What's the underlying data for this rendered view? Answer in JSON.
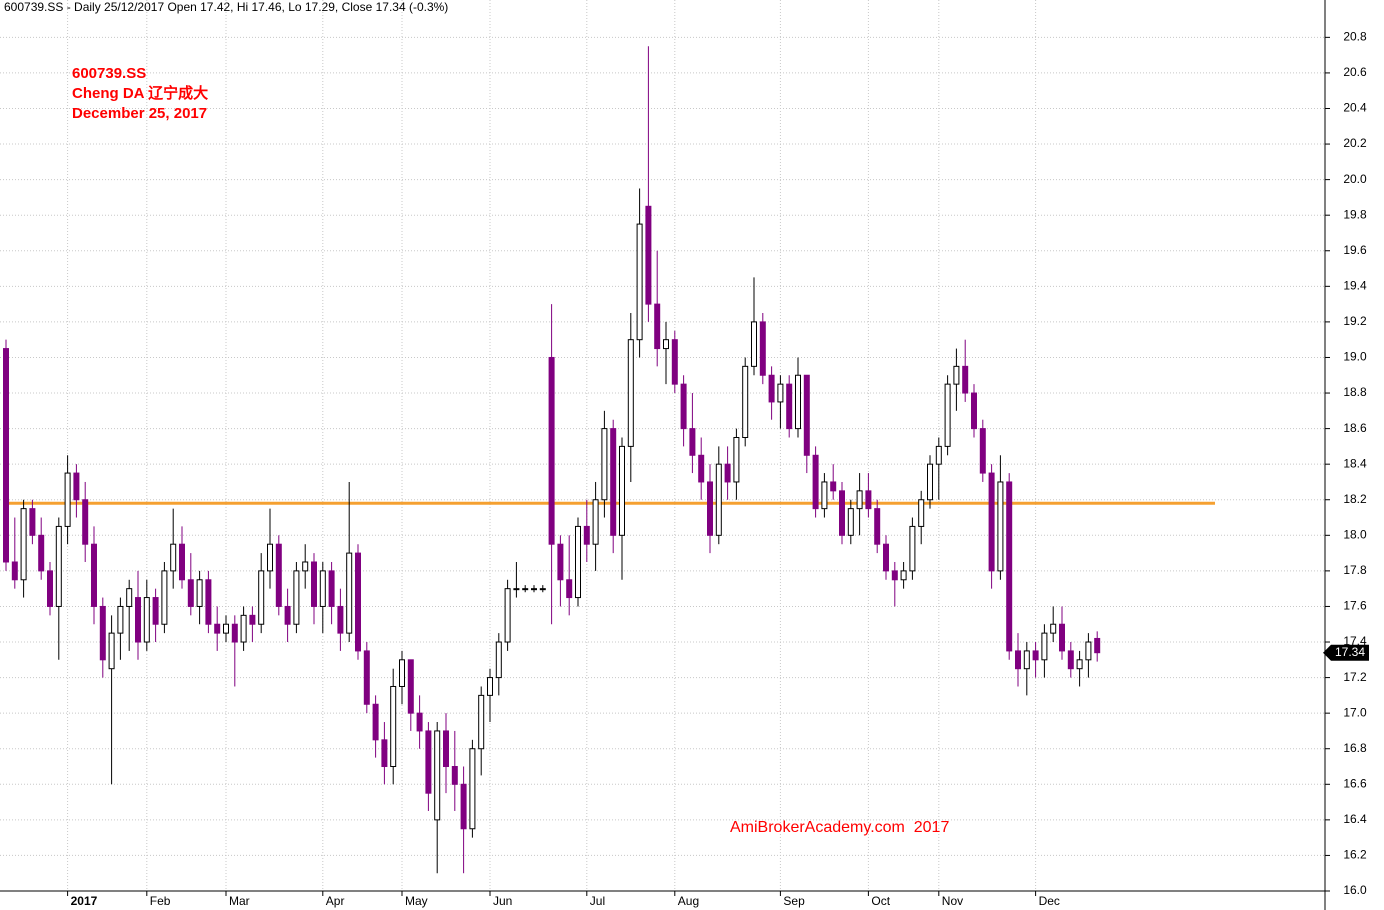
{
  "chart_data": {
    "type": "candlestick",
    "header": "600739.SS - Daily 25/12/2017 Open 17.42, Hi 17.46, Lo 17.29, Close 17.34 (-0.3%)",
    "annotations": [
      "600739.SS",
      "Cheng DA 辽宁成大",
      "December 25, 2017"
    ],
    "watermark": "AmiBrokerAcademy.com  2017",
    "up_color": "#ffffff",
    "down_color": "#800080",
    "annotation_color": "#ff0000",
    "reference_line": {
      "value": 18.18,
      "color": "#f5a030"
    },
    "grid": true,
    "ylim": [
      16,
      21.01
    ],
    "yticks": [
      {
        "value": 16,
        "label": "16.0"
      },
      16.2,
      16.4,
      16.6,
      16.8,
      {
        "value": 17,
        "label": "17.0"
      },
      17.2,
      17.4,
      17.6,
      17.8,
      {
        "value": 18,
        "label": "18.0"
      },
      18.2,
      18.4,
      18.6,
      18.8,
      {
        "value": 19,
        "label": "19.0"
      },
      19.2,
      19.4,
      19.6,
      19.8,
      {
        "value": 20,
        "label": "20.0"
      },
      20.2,
      20.4,
      20.6,
      20.8
    ],
    "categories": [
      null,
      null,
      null,
      null,
      null,
      null,
      null,
      "2017",
      null,
      null,
      null,
      null,
      null,
      null,
      null,
      null,
      "Feb",
      null,
      null,
      null,
      null,
      null,
      null,
      null,
      null,
      "Mar",
      null,
      null,
      null,
      null,
      null,
      null,
      null,
      null,
      null,
      null,
      "Apr",
      null,
      null,
      null,
      null,
      null,
      null,
      null,
      null,
      "May",
      null,
      null,
      null,
      null,
      null,
      null,
      null,
      null,
      null,
      "Jun",
      null,
      null,
      null,
      null,
      null,
      null,
      null,
      null,
      null,
      null,
      "Jul",
      null,
      null,
      null,
      null,
      null,
      null,
      null,
      null,
      null,
      "Aug",
      null,
      null,
      null,
      null,
      null,
      null,
      null,
      null,
      null,
      null,
      null,
      "Sep",
      null,
      null,
      null,
      null,
      null,
      null,
      null,
      null,
      null,
      "Oct",
      null,
      null,
      null,
      null,
      null,
      null,
      null,
      "Nov",
      null,
      null,
      null,
      null,
      null,
      null,
      null,
      null,
      null,
      null,
      "Dec",
      null,
      null,
      null,
      null,
      null,
      null,
      null
    ],
    "open": [
      19.05,
      17.85,
      17.75,
      18.15,
      18.0,
      17.8,
      17.6,
      18.05,
      18.35,
      18.2,
      17.95,
      17.6,
      17.25,
      17.45,
      17.6,
      17.65,
      17.4,
      17.65,
      17.5,
      17.8,
      17.95,
      17.75,
      17.6,
      17.75,
      17.5,
      17.45,
      17.5,
      17.4,
      17.55,
      17.5,
      17.8,
      17.95,
      17.6,
      17.5,
      17.8,
      17.85,
      17.6,
      17.8,
      17.6,
      17.45,
      17.9,
      17.35,
      17.05,
      16.85,
      16.7,
      17.15,
      17.3,
      17.0,
      16.9,
      16.4,
      16.9,
      16.7,
      16.6,
      16.35,
      16.8,
      17.1,
      17.2,
      17.4,
      17.7,
      17.7,
      17.7,
      17.7,
      19.0,
      17.95,
      17.75,
      17.65,
      18.05,
      17.95,
      18.2,
      18.6,
      18.0,
      18.5,
      19.1,
      19.85,
      19.3,
      19.05,
      19.1,
      18.85,
      18.6,
      18.45,
      18.3,
      18.0,
      18.4,
      18.3,
      18.55,
      18.95,
      19.2,
      18.9,
      18.75,
      18.85,
      18.6,
      18.9,
      18.45,
      18.15,
      18.3,
      18.25,
      18.0,
      18.15,
      18.25,
      18.15,
      17.95,
      17.8,
      17.75,
      17.8,
      18.05,
      18.2,
      18.4,
      18.5,
      18.85,
      18.95,
      18.8,
      18.6,
      18.35,
      17.8,
      18.3,
      17.35,
      17.25,
      17.35,
      17.3,
      17.45,
      17.5,
      17.35,
      17.25,
      17.3,
      17.42
    ],
    "high": [
      19.1,
      18.1,
      18.2,
      18.2,
      18.1,
      17.85,
      18.1,
      18.45,
      18.4,
      18.3,
      18.05,
      17.65,
      17.55,
      17.65,
      17.75,
      17.8,
      17.75,
      17.7,
      17.85,
      18.15,
      18.05,
      17.9,
      17.8,
      17.8,
      17.6,
      17.55,
      17.55,
      17.6,
      17.6,
      17.9,
      18.15,
      18.0,
      17.7,
      17.85,
      17.95,
      17.9,
      17.85,
      17.85,
      17.7,
      18.3,
      17.95,
      17.4,
      17.1,
      16.95,
      17.25,
      17.35,
      17.3,
      17.1,
      16.95,
      16.95,
      17.0,
      16.9,
      16.7,
      16.85,
      17.15,
      17.25,
      17.45,
      17.75,
      17.85,
      17.72,
      17.72,
      17.72,
      19.3,
      18.0,
      18.0,
      18.1,
      18.2,
      18.3,
      18.7,
      18.65,
      18.55,
      19.25,
      19.95,
      20.75,
      19.6,
      19.2,
      19.15,
      18.9,
      18.8,
      18.55,
      18.4,
      18.5,
      18.5,
      18.6,
      19.0,
      19.45,
      19.25,
      18.95,
      18.9,
      18.9,
      19.0,
      18.9,
      18.5,
      18.35,
      18.4,
      18.3,
      18.2,
      18.35,
      18.35,
      18.2,
      18.0,
      17.85,
      17.85,
      18.1,
      18.25,
      18.45,
      18.55,
      18.9,
      19.05,
      19.1,
      18.85,
      18.65,
      18.4,
      18.45,
      18.35,
      17.45,
      17.4,
      17.4,
      17.5,
      17.6,
      17.6,
      17.4,
      17.35,
      17.45,
      17.46
    ],
    "low": [
      17.8,
      17.7,
      17.65,
      17.95,
      17.75,
      17.55,
      17.3,
      17.95,
      18.1,
      17.85,
      17.5,
      17.2,
      16.6,
      17.3,
      17.35,
      17.3,
      17.35,
      17.4,
      17.45,
      17.7,
      17.7,
      17.55,
      17.5,
      17.45,
      17.35,
      17.4,
      17.15,
      17.35,
      17.4,
      17.45,
      17.7,
      17.55,
      17.4,
      17.45,
      17.7,
      17.5,
      17.45,
      17.5,
      17.35,
      17.4,
      17.3,
      17.0,
      16.75,
      16.6,
      16.6,
      17.05,
      16.9,
      16.8,
      16.45,
      16.1,
      16.55,
      16.45,
      16.1,
      16.3,
      16.65,
      16.95,
      17.1,
      17.35,
      17.65,
      17.68,
      17.68,
      17.68,
      17.5,
      17.6,
      17.55,
      17.6,
      17.85,
      17.8,
      18.1,
      17.9,
      17.75,
      18.3,
      19.0,
      19.2,
      18.95,
      18.85,
      18.8,
      18.5,
      18.35,
      18.2,
      17.9,
      17.95,
      18.2,
      18.2,
      18.5,
      18.9,
      18.85,
      18.65,
      18.6,
      18.55,
      18.55,
      18.35,
      18.1,
      18.1,
      18.2,
      17.95,
      17.95,
      18.0,
      18.1,
      17.9,
      17.75,
      17.6,
      17.7,
      17.75,
      17.95,
      18.15,
      18.2,
      18.45,
      18.7,
      18.75,
      18.55,
      18.3,
      17.7,
      17.75,
      17.3,
      17.15,
      17.1,
      17.2,
      17.2,
      17.4,
      17.3,
      17.2,
      17.15,
      17.2,
      17.29
    ],
    "close": [
      17.85,
      17.75,
      18.15,
      18.0,
      17.8,
      17.6,
      18.05,
      18.35,
      18.2,
      17.95,
      17.6,
      17.3,
      17.45,
      17.6,
      17.7,
      17.4,
      17.65,
      17.5,
      17.8,
      17.95,
      17.75,
      17.6,
      17.75,
      17.5,
      17.45,
      17.5,
      17.4,
      17.55,
      17.5,
      17.8,
      17.95,
      17.6,
      17.5,
      17.8,
      17.85,
      17.6,
      17.8,
      17.6,
      17.45,
      17.9,
      17.35,
      17.05,
      16.85,
      16.7,
      17.15,
      17.3,
      17.0,
      16.9,
      16.55,
      16.9,
      16.7,
      16.6,
      16.35,
      16.8,
      17.1,
      17.2,
      17.4,
      17.7,
      17.7,
      17.7,
      17.7,
      17.7,
      17.95,
      17.75,
      17.65,
      18.05,
      17.95,
      18.2,
      18.6,
      18.0,
      18.5,
      19.1,
      19.75,
      19.3,
      19.05,
      19.1,
      18.85,
      18.6,
      18.45,
      18.3,
      18.0,
      18.4,
      18.3,
      18.55,
      18.95,
      19.2,
      18.9,
      18.75,
      18.85,
      18.6,
      18.9,
      18.45,
      18.15,
      18.3,
      18.25,
      18.0,
      18.15,
      18.25,
      18.15,
      17.95,
      17.8,
      17.75,
      17.8,
      18.05,
      18.2,
      18.4,
      18.5,
      18.85,
      18.95,
      18.8,
      18.6,
      18.35,
      17.8,
      18.3,
      17.35,
      17.25,
      17.35,
      17.3,
      17.45,
      17.5,
      17.35,
      17.25,
      17.3,
      17.4,
      17.34
    ]
  }
}
